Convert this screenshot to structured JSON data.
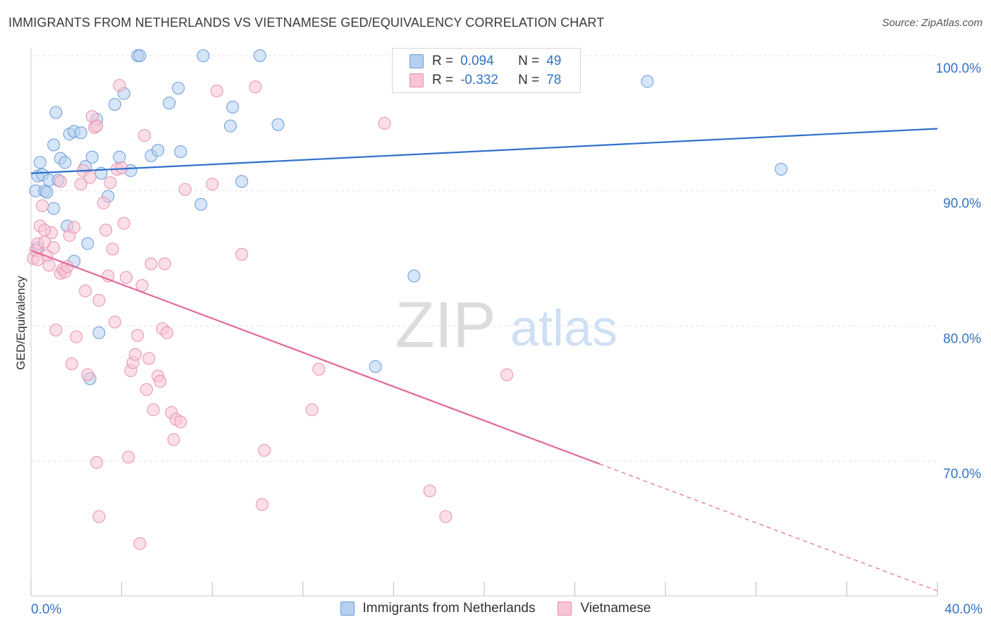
{
  "header": {
    "title": "IMMIGRANTS FROM NETHERLANDS VS VIETNAMESE GED/EQUIVALENCY CORRELATION CHART",
    "source": "Source: ZipAtlas.com"
  },
  "watermark": {
    "zip": "ZIP",
    "atlas": "atlas"
  },
  "legend": {
    "r_label": "R =",
    "n_label": "N =",
    "rows": [
      {
        "r": "0.094",
        "n": "49"
      },
      {
        "r": "-0.332",
        "n": "78"
      }
    ]
  },
  "colors": {
    "blue_fill": "#b5d0f0",
    "blue_stroke": "#6a9bd8",
    "blue_line": "#2d6fcc",
    "pink_fill": "#f8c4d4",
    "pink_stroke": "#e890ae",
    "pink_line": "#e0699a",
    "value_text": "#3373c4",
    "grid": "#e2e2e2"
  },
  "chart_data": {
    "type": "scatter",
    "title": "IMMIGRANTS FROM NETHERLANDS VS VIETNAMESE GED/EQUIVALENCY CORRELATION CHART",
    "xlabel": "",
    "ylabel": "GED/Equivalency",
    "xlim": [
      0,
      40
    ],
    "ylim": [
      60,
      101
    ],
    "x_tick_labels": [
      "0.0%",
      "40.0%"
    ],
    "y_ticks": [
      70,
      80,
      90,
      100
    ],
    "y_tick_labels": [
      "70.0%",
      "80.0%",
      "90.0%",
      "100.0%"
    ],
    "grid": true,
    "legend_position": "top-center",
    "series": [
      {
        "name": "Immigrants from Netherlands",
        "color": "#b5d0f0",
        "trend": {
          "x": [
            0,
            40
          ],
          "y": [
            91.3,
            94.6
          ],
          "solid_to": 40
        },
        "points": [
          [
            0.2,
            90.0
          ],
          [
            0.3,
            91.1
          ],
          [
            0.4,
            92.1
          ],
          [
            0.5,
            91.2
          ],
          [
            0.6,
            90.0
          ],
          [
            0.7,
            89.9
          ],
          [
            0.8,
            90.8
          ],
          [
            1.0,
            93.4
          ],
          [
            1.0,
            88.7
          ],
          [
            1.1,
            95.8
          ],
          [
            1.3,
            92.4
          ],
          [
            1.5,
            92.1
          ],
          [
            1.7,
            94.2
          ],
          [
            1.9,
            94.4
          ],
          [
            2.2,
            94.3
          ],
          [
            2.4,
            91.8
          ],
          [
            2.7,
            92.5
          ],
          [
            2.9,
            95.3
          ],
          [
            3.1,
            91.3
          ],
          [
            3.4,
            89.6
          ],
          [
            3.7,
            96.4
          ],
          [
            3.9,
            92.5
          ],
          [
            4.1,
            97.2
          ],
          [
            4.4,
            91.5
          ],
          [
            4.7,
            100.0
          ],
          [
            4.8,
            100.0
          ],
          [
            5.3,
            92.6
          ],
          [
            5.6,
            93.0
          ],
          [
            6.1,
            96.5
          ],
          [
            6.5,
            97.6
          ],
          [
            6.6,
            92.9
          ],
          [
            7.5,
            89.0
          ],
          [
            7.6,
            100.0
          ],
          [
            8.8,
            94.8
          ],
          [
            8.9,
            96.2
          ],
          [
            9.3,
            90.7
          ],
          [
            10.1,
            100.0
          ],
          [
            10.9,
            94.9
          ],
          [
            1.6,
            87.4
          ],
          [
            2.5,
            86.1
          ],
          [
            1.9,
            84.8
          ],
          [
            3.0,
            79.5
          ],
          [
            2.6,
            76.1
          ],
          [
            15.2,
            77.0
          ],
          [
            16.9,
            83.7
          ],
          [
            27.2,
            98.1
          ],
          [
            33.1,
            91.6
          ],
          [
            0.3,
            85.8
          ],
          [
            1.2,
            90.8
          ]
        ]
      },
      {
        "name": "Vietnamese",
        "color": "#f8c4d4",
        "trend": {
          "x": [
            0,
            40
          ],
          "y": [
            85.6,
            60.4
          ],
          "solid_to": 25.1
        },
        "points": [
          [
            0.1,
            85.0
          ],
          [
            0.2,
            85.6
          ],
          [
            0.3,
            86.1
          ],
          [
            0.4,
            87.4
          ],
          [
            0.5,
            88.9
          ],
          [
            0.6,
            86.2
          ],
          [
            0.7,
            85.2
          ],
          [
            0.8,
            84.5
          ],
          [
            0.9,
            86.9
          ],
          [
            1.0,
            85.8
          ],
          [
            1.1,
            79.7
          ],
          [
            1.3,
            83.9
          ],
          [
            1.4,
            84.2
          ],
          [
            1.5,
            84.0
          ],
          [
            1.6,
            84.4
          ],
          [
            1.7,
            86.7
          ],
          [
            1.8,
            77.2
          ],
          [
            1.9,
            87.3
          ],
          [
            2.0,
            79.2
          ],
          [
            2.2,
            90.5
          ],
          [
            2.3,
            91.5
          ],
          [
            2.4,
            82.6
          ],
          [
            2.5,
            76.4
          ],
          [
            2.6,
            91.0
          ],
          [
            2.7,
            95.5
          ],
          [
            2.8,
            94.7
          ],
          [
            2.9,
            94.8
          ],
          [
            3.0,
            81.9
          ],
          [
            3.2,
            89.1
          ],
          [
            3.3,
            87.1
          ],
          [
            3.4,
            83.7
          ],
          [
            3.5,
            90.6
          ],
          [
            3.6,
            85.7
          ],
          [
            3.7,
            80.3
          ],
          [
            3.8,
            91.6
          ],
          [
            3.9,
            97.8
          ],
          [
            4.0,
            91.7
          ],
          [
            4.1,
            87.6
          ],
          [
            4.2,
            83.6
          ],
          [
            4.3,
            70.3
          ],
          [
            4.4,
            76.7
          ],
          [
            4.5,
            77.3
          ],
          [
            4.6,
            77.9
          ],
          [
            4.7,
            79.3
          ],
          [
            4.8,
            63.9
          ],
          [
            4.9,
            83.0
          ],
          [
            5.0,
            94.1
          ],
          [
            5.1,
            75.3
          ],
          [
            5.2,
            77.6
          ],
          [
            5.3,
            84.6
          ],
          [
            5.4,
            73.8
          ],
          [
            5.6,
            76.3
          ],
          [
            5.7,
            75.9
          ],
          [
            5.8,
            79.8
          ],
          [
            5.9,
            84.6
          ],
          [
            6.0,
            79.5
          ],
          [
            6.2,
            73.6
          ],
          [
            6.3,
            71.6
          ],
          [
            6.4,
            73.1
          ],
          [
            6.6,
            72.9
          ],
          [
            6.8,
            90.1
          ],
          [
            8.0,
            90.5
          ],
          [
            8.2,
            97.4
          ],
          [
            9.3,
            85.3
          ],
          [
            9.9,
            97.7
          ],
          [
            10.2,
            66.8
          ],
          [
            10.3,
            70.8
          ],
          [
            12.4,
            73.8
          ],
          [
            12.7,
            76.8
          ],
          [
            15.6,
            95.0
          ],
          [
            17.6,
            67.8
          ],
          [
            18.3,
            65.9
          ],
          [
            21.0,
            76.4
          ],
          [
            2.9,
            69.9
          ],
          [
            3.0,
            65.9
          ],
          [
            1.3,
            90.7
          ],
          [
            0.3,
            84.9
          ],
          [
            0.6,
            87.1
          ]
        ]
      }
    ]
  }
}
